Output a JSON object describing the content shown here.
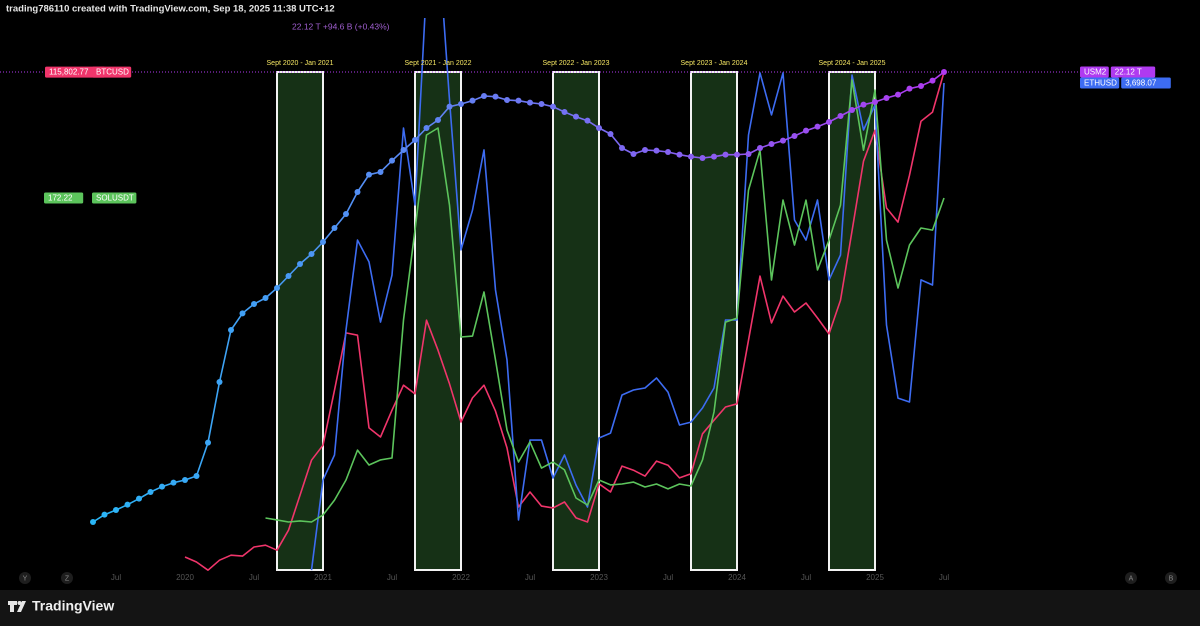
{
  "header": {
    "title": "trading786110 created with TradingView.com, Sep 18, 2025 11:38 UTC+12"
  },
  "chart_data": {
    "type": "line",
    "legend_text": "22.12 T  +94.6 B (+0.43%)",
    "categories": [
      null,
      null,
      "Jul",
      null,
      null,
      null,
      null,
      null,
      "2020",
      null,
      null,
      null,
      null,
      null,
      "Jul",
      null,
      null,
      null,
      null,
      null,
      "2021",
      null,
      null,
      null,
      null,
      null,
      "Jul",
      null,
      null,
      null,
      null,
      null,
      "2022",
      null,
      null,
      null,
      null,
      null,
      "Jul",
      null,
      null,
      null,
      null,
      null,
      "2023",
      null,
      null,
      null,
      null,
      null,
      "Jul",
      null,
      null,
      null,
      null,
      null,
      "2024",
      null,
      null,
      null,
      null,
      null,
      "Jul",
      null,
      null,
      null,
      null,
      null,
      "2025",
      null,
      null,
      null,
      null,
      null,
      "Jul"
    ],
    "series": [
      {
        "name": "USM2",
        "price_label": "22.12 T",
        "tag_side": "right",
        "color": "#b03af0",
        "gradient": [
          "#29b6f6",
          "#b03af0"
        ],
        "markers": true,
        "ylim": [
          14.62,
          22.93
        ],
        "values": [
          15.37,
          15.48,
          15.55,
          15.63,
          15.72,
          15.82,
          15.9,
          15.96,
          16.0,
          16.06,
          16.56,
          17.47,
          18.25,
          18.5,
          18.64,
          18.73,
          18.88,
          19.06,
          19.24,
          19.39,
          19.57,
          19.78,
          19.99,
          20.32,
          20.58,
          20.62,
          20.79,
          20.95,
          21.1,
          21.28,
          21.4,
          21.6,
          21.64,
          21.69,
          21.76,
          21.75,
          21.7,
          21.69,
          21.66,
          21.64,
          21.6,
          21.52,
          21.45,
          21.39,
          21.28,
          21.19,
          20.98,
          20.89,
          20.95,
          20.94,
          20.92,
          20.88,
          20.85,
          20.83,
          20.85,
          20.88,
          20.88,
          20.89,
          20.98,
          21.04,
          21.09,
          21.16,
          21.24,
          21.3,
          21.37,
          21.46,
          21.55,
          21.63,
          21.67,
          21.73,
          21.78,
          21.87,
          21.91,
          21.99,
          22.12
        ]
      },
      {
        "name": "BTCUSD",
        "price_label": "115,802.77",
        "tag_side": "left",
        "color": "#f0356b",
        "ylim": [
          5800,
          127700
        ],
        "values": [
          null,
          null,
          null,
          null,
          null,
          null,
          null,
          null,
          9100,
          8000,
          6200,
          8400,
          9500,
          9300,
          11300,
          11700,
          10600,
          15000,
          22700,
          30400,
          33700,
          45800,
          58400,
          57900,
          37500,
          35500,
          41400,
          46900,
          45000,
          61200,
          54600,
          47200,
          38800,
          44100,
          46900,
          41200,
          33100,
          20100,
          23400,
          20300,
          19900,
          21200,
          17700,
          16800,
          25200,
          23400,
          29100,
          28200,
          26900,
          30200,
          29300,
          26500,
          27400,
          36200,
          39200,
          42100,
          42800,
          56800,
          70900,
          60600,
          66500,
          63000,
          65000,
          61700,
          58200,
          65600,
          80800,
          96200,
          103000,
          85900,
          82800,
          93100,
          105000,
          107000,
          115802.77
        ]
      },
      {
        "name": "ETHUSD",
        "price_label": "3,698.07",
        "tag_side": "right",
        "color": "#3d6cf2",
        "ylim": [
          681,
          4099
        ],
        "values": [
          null,
          null,
          null,
          null,
          null,
          null,
          null,
          null,
          null,
          null,
          null,
          null,
          null,
          null,
          null,
          null,
          null,
          null,
          null,
          693,
          1249,
          1403,
          2174,
          2729,
          2594,
          2223,
          2513,
          3420,
          2945,
          4300,
          4600,
          3593,
          2668,
          2914,
          3285,
          2421,
          1989,
          1002,
          1495,
          1495,
          1261,
          1403,
          1218,
          1082,
          1508,
          1538,
          1773,
          1804,
          1816,
          1878,
          1791,
          1588,
          1606,
          1693,
          1816,
          2236,
          2236,
          3377,
          3760,
          3501,
          3760,
          2853,
          2729,
          2976,
          2483,
          2637,
          3747,
          3408,
          3562,
          2205,
          1754,
          1730,
          2483,
          2452,
          3698.07
        ]
      },
      {
        "name": "SOLUSDT",
        "price_label": "172.22",
        "tag_side": "left",
        "color": "#5cc45c",
        "ylim": [
          -25.3,
          267.3
        ],
        "values": [
          null,
          null,
          null,
          null,
          null,
          null,
          null,
          null,
          null,
          null,
          null,
          null,
          null,
          null,
          null,
          3.2,
          2.2,
          1.1,
          1.7,
          1.1,
          4.8,
          12.7,
          23.3,
          39.1,
          31.2,
          33.9,
          34.9,
          107.8,
          155.3,
          205.5,
          209.2,
          168.5,
          98.8,
          99.3,
          122.6,
          86.7,
          49.7,
          32.8,
          43.4,
          29.6,
          32.8,
          28.6,
          13.8,
          10.1,
          23.3,
          20.7,
          21.2,
          22.2,
          19.6,
          21.2,
          18.6,
          21.2,
          20.1,
          33.9,
          59.2,
          106.7,
          108.8,
          176.4,
          197.5,
          128.9,
          171.1,
          147.4,
          171.1,
          134.2,
          150,
          168.5,
          234.5,
          197.5,
          229.2,
          150,
          124.7,
          147.4,
          156.4,
          155.3,
          172.22
        ]
      }
    ],
    "zones": [
      {
        "label": "Sept 2020 - Jan 2021",
        "start": 16,
        "end": 20
      },
      {
        "label": "Sept 2021 - Jan 2022",
        "start": 28,
        "end": 32
      },
      {
        "label": "Sept 2022 - Jan 2023",
        "start": 40,
        "end": 44
      },
      {
        "label": "Sept 2023 - Jan 2024",
        "start": 52,
        "end": 56
      },
      {
        "label": "Sept 2024 - Jan 2025",
        "start": 64,
        "end": 68
      }
    ],
    "zone_color": "#1c3d1c",
    "corner_buttons": [
      "Y",
      "Z",
      "A",
      "B"
    ]
  },
  "footer": {
    "brand": "TradingView"
  }
}
